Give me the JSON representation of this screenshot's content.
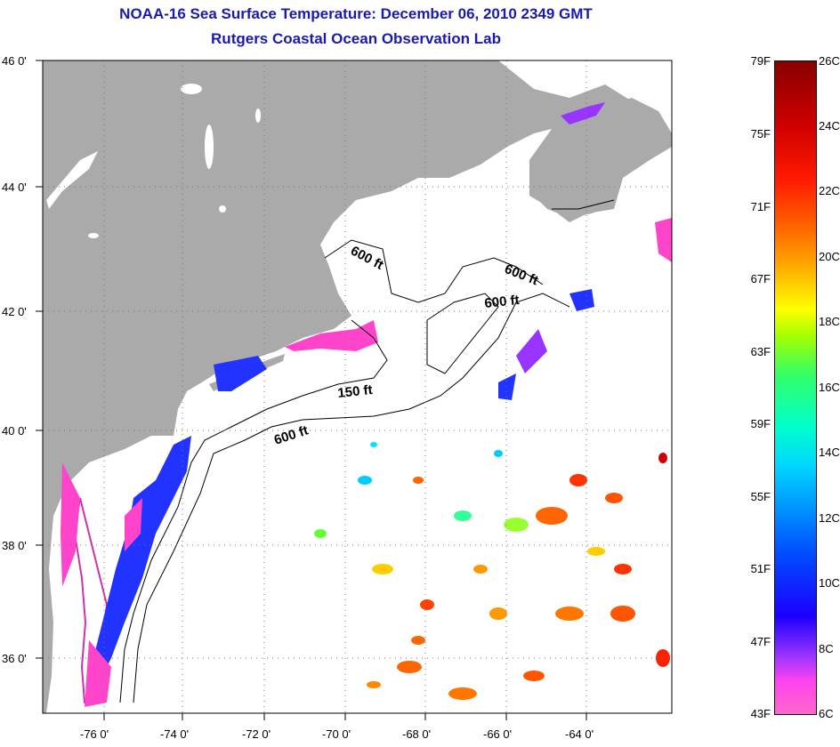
{
  "title": {
    "line1": "NOAA-16 Sea Surface Temperature:  December 06, 2010 2349 GMT",
    "line2": "Rutgers Coastal Ocean Observation Lab"
  },
  "axes": {
    "lat_labels": [
      "46 0'",
      "44 0'",
      "42 0'",
      "40 0'",
      "38 0'",
      "36 0'"
    ],
    "lon_labels": [
      "-76 0'",
      "-74 0'",
      "-72 0'",
      "-70 0'",
      "-68 0'",
      "-66 0'",
      "-64 0'"
    ]
  },
  "contour_labels": [
    "600 ft",
    "600 ft",
    "600 ft",
    "150 ft",
    "600 ft"
  ],
  "legend": {
    "fahrenheit": [
      "79F",
      "75F",
      "71F",
      "67F",
      "63F",
      "59F",
      "55F",
      "51F",
      "47F",
      "43F"
    ],
    "celsius": [
      "26C",
      "24C",
      "22C",
      "20C",
      "18C",
      "16C",
      "14C",
      "12C",
      "10C",
      "8C",
      "6C"
    ]
  },
  "colors": {
    "land": "#aaaaaa",
    "title": "#1a1ab0",
    "cold": "#ff44cc",
    "cool": "#2233ff",
    "warm": "#ff6600"
  }
}
